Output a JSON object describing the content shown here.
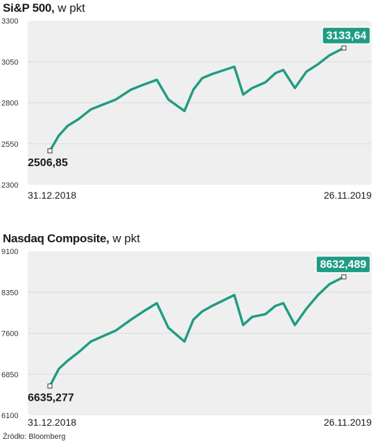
{
  "source": "Źródło: Bloomberg",
  "accent_color": "#1f9c83",
  "chart_data": [
    {
      "type": "line",
      "title_bold": "Si&P 500,",
      "title_unit": "w pkt",
      "yticks": [
        "3300",
        "3050",
        "2800",
        "2550",
        "2300"
      ],
      "ylim": [
        2300,
        3300
      ],
      "xlim": [
        "31.12.2018",
        "26.11.2019"
      ],
      "x_start_label": "31.12.2018",
      "x_end_label": "26.11.2019",
      "start_label": "2506,85",
      "end_label": "3133,64",
      "series": [
        {
          "x": [
            "2018-12-31",
            "2019-01-10",
            "2019-01-20",
            "2019-02-01",
            "2019-02-15",
            "2019-03-01",
            "2019-03-15",
            "2019-04-01",
            "2019-04-15",
            "2019-04-30",
            "2019-05-13",
            "2019-05-31",
            "2019-06-10",
            "2019-06-20",
            "2019-07-01",
            "2019-07-26",
            "2019-08-05",
            "2019-08-15",
            "2019-08-30",
            "2019-09-10",
            "2019-09-19",
            "2019-10-02",
            "2019-10-15",
            "2019-10-28",
            "2019-11-10",
            "2019-11-26"
          ],
          "y": [
            2507,
            2600,
            2660,
            2700,
            2760,
            2790,
            2820,
            2880,
            2910,
            2940,
            2820,
            2750,
            2880,
            2950,
            2975,
            3020,
            2850,
            2890,
            2925,
            2980,
            3000,
            2890,
            2990,
            3035,
            3090,
            3134
          ]
        }
      ]
    },
    {
      "type": "line",
      "title_bold": "Nasdaq Composite,",
      "title_unit": "w pkt",
      "yticks": [
        "9100",
        "8350",
        "7600",
        "6850",
        "6100"
      ],
      "ylim": [
        6100,
        9100
      ],
      "xlim": [
        "31.12.2018",
        "26.11.2019"
      ],
      "x_start_label": "31.12.2018",
      "x_end_label": "26.11.2019",
      "start_label": "6635,277",
      "end_label": "8632,489",
      "series": [
        {
          "x": [
            "2018-12-31",
            "2019-01-10",
            "2019-01-20",
            "2019-02-01",
            "2019-02-15",
            "2019-03-01",
            "2019-03-15",
            "2019-04-01",
            "2019-04-15",
            "2019-04-30",
            "2019-05-13",
            "2019-05-31",
            "2019-06-10",
            "2019-06-20",
            "2019-07-01",
            "2019-07-26",
            "2019-08-05",
            "2019-08-15",
            "2019-08-30",
            "2019-09-10",
            "2019-09-19",
            "2019-10-02",
            "2019-10-15",
            "2019-10-28",
            "2019-11-10",
            "2019-11-26"
          ],
          "y": [
            6635,
            6950,
            7100,
            7250,
            7450,
            7550,
            7650,
            7850,
            8000,
            8150,
            7700,
            7450,
            7850,
            8000,
            8100,
            8300,
            7750,
            7900,
            7950,
            8100,
            8150,
            7750,
            8050,
            8300,
            8500,
            8632
          ]
        }
      ]
    }
  ]
}
